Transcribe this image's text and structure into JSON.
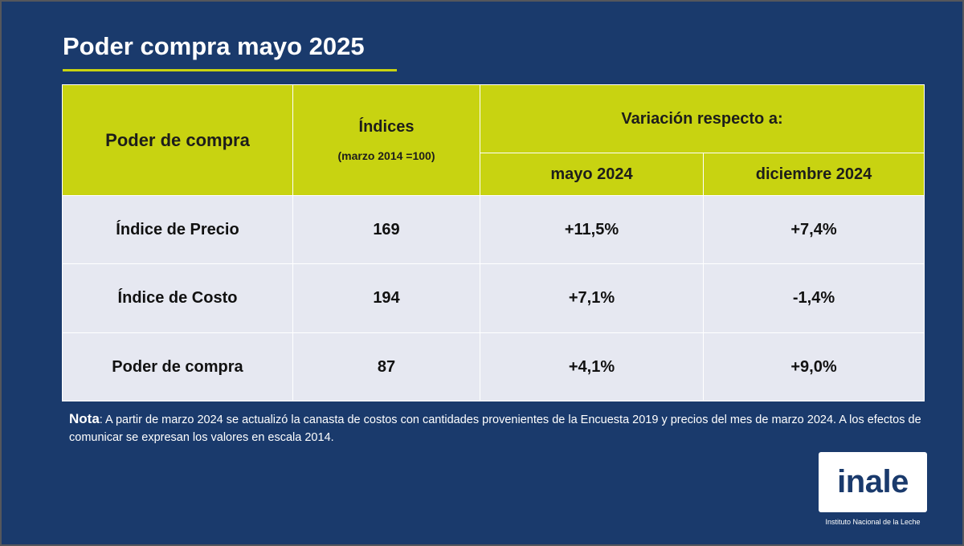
{
  "title": "Poder compra mayo 2025",
  "table": {
    "header": {
      "col1": "Poder de compra",
      "col2_title": "Índices",
      "col2_subtitle": "(marzo 2014 =100)",
      "group": "Variación respecto a:",
      "sub1": "mayo 2024",
      "sub2": "diciembre 2024"
    },
    "rows": [
      {
        "label": "Índice de Precio",
        "index": "169",
        "var_may": "+11,5%",
        "var_dec": "+7,4%"
      },
      {
        "label": "Índice de Costo",
        "index": "194",
        "var_may": "+7,1%",
        "var_dec": "-1,4%"
      },
      {
        "label": "Poder de compra",
        "index": "87",
        "var_may": "+4,1%",
        "var_dec": "+9,0%"
      }
    ]
  },
  "note": {
    "label": "Nota",
    "text": ": A partir de marzo 2024 se actualizó la canasta de costos con cantidades provenientes de la Encuesta 2019 y precios del mes de marzo 2024. A los efectos de comunicar se expresan los valores en escala 2014."
  },
  "logo": {
    "text": "inale",
    "caption": "Instituto Nacional de la Leche"
  },
  "colors": {
    "background": "#1a3a6c",
    "accent": "#c8d311",
    "row_bg": "#e6e8f1"
  }
}
